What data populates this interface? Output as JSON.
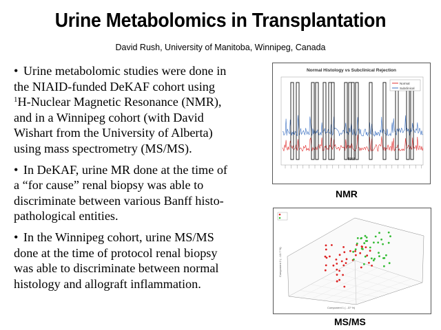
{
  "slide": {
    "title": "Urine Metabolomics in Transplantation",
    "subtitle": "David Rush, University of Manitoba, Winnipeg, Canada"
  },
  "bullets": [
    {
      "lines": [
        "Urine metabolomic studies were done in",
        "the NIAID-funded DeKAF cohort using",
        "H-Nuclear Magnetic Resonance (NMR),",
        "and in a Winnipeg cohort (with David",
        "Wishart from the University of Alberta)",
        "using mass spectrometry (MS/MS)."
      ],
      "superscript": "1"
    },
    {
      "lines": [
        "In DeKAF, urine MR done at the time of",
        "a “for cause” renal biopsy was able to",
        "discriminate between various Banff histo-",
        "pathological entities."
      ]
    },
    {
      "lines": [
        "In the Winnipeg cohort, urine MS/MS",
        "done at the time of protocol renal biopsy",
        "was able to discriminate between normal",
        "histology and allograft inflammation."
      ]
    }
  ],
  "bullet_symbol": "•",
  "figures": {
    "nmr": {
      "label": "NMR",
      "title": "Normal Histology vs Subclinical Rejection",
      "xlabel": "PPM",
      "legend": [
        "Normal",
        "Subclinical"
      ],
      "colors": {
        "Normal": "#e03030",
        "Subclinical": "#3a6fc0"
      }
    },
    "msms": {
      "label": "MS/MS",
      "xlabel": "Component 1 (...37 %)",
      "ylabel": "Component 2 (...13.7 %)",
      "colors": {
        "group_a": "#dd2222",
        "group_b": "#33bb33"
      }
    }
  }
}
